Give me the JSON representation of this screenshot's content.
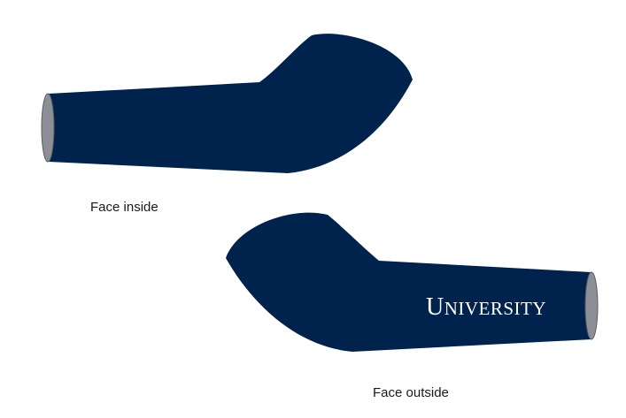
{
  "colors": {
    "sleeve": "#00234d",
    "cuff": "#8c9096",
    "cuff_stroke": "#5a5d62",
    "wordmark": "#ffffff",
    "caption": "#1a1a1a"
  },
  "views": [
    {
      "label": "Face inside"
    },
    {
      "label": "Face outside",
      "wordmark": "UNIVERSITY"
    }
  ]
}
